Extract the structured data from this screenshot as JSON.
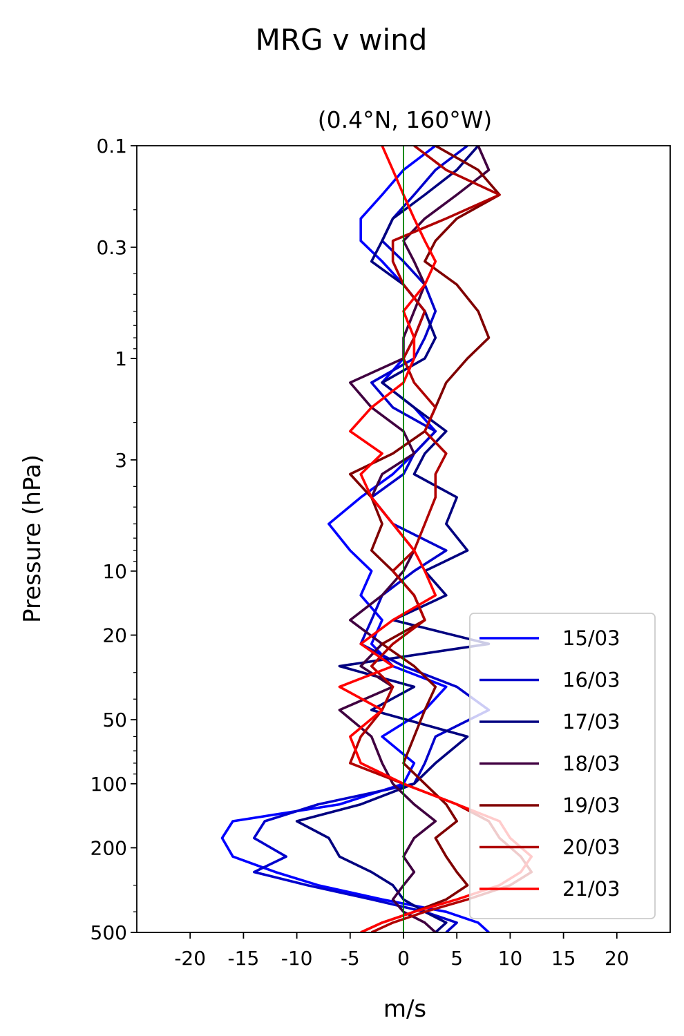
{
  "chart_data": {
    "type": "line",
    "title": "MRG v wind",
    "subtitle": "(0.4°N, 160°W)",
    "xlabel": "m/s",
    "ylabel": "Pressure (hPa)",
    "xlim": [
      -25,
      25
    ],
    "ylim": [
      500,
      0.1
    ],
    "y_scale": "log",
    "y_inverted": true,
    "grid": false,
    "legend_position": "lower-right",
    "x_ticks": [
      -20,
      -15,
      -10,
      -5,
      0,
      5,
      10,
      15,
      20
    ],
    "x_tick_labels": [
      "-20",
      "-15",
      "-10",
      "-5",
      "0",
      "5",
      "10",
      "15",
      "20"
    ],
    "y_ticks": [
      0.1,
      0.3,
      1,
      3,
      10,
      20,
      50,
      100,
      200,
      500
    ],
    "y_tick_labels": [
      "0.1",
      "0.3",
      "1",
      "3",
      "10",
      "20",
      "50",
      "100",
      "200",
      "500"
    ],
    "zero_line_color": "#008000",
    "pressure_levels": [
      0.1,
      0.13,
      0.17,
      0.22,
      0.28,
      0.35,
      0.45,
      0.6,
      0.8,
      1.0,
      1.3,
      1.7,
      2.2,
      2.8,
      3.5,
      4.5,
      6,
      8,
      10,
      13,
      17,
      22,
      28,
      35,
      45,
      60,
      80,
      100,
      125,
      150,
      180,
      220,
      260,
      300,
      350,
      400,
      450,
      500
    ],
    "series": [
      {
        "name": "15/03",
        "color": "#0000ff",
        "values": [
          3,
          0,
          -2,
          -4,
          -4,
          -2,
          0,
          2,
          1,
          0,
          -2,
          1,
          3,
          1,
          -1,
          -4,
          -7,
          -5,
          -3,
          -4,
          -2,
          -3,
          -1,
          4,
          2,
          -2,
          1,
          0,
          -6,
          -16,
          -17,
          -16,
          -12,
          -8,
          -2,
          4,
          7,
          8
        ]
      },
      {
        "name": "16/03",
        "color": "#0000cc",
        "values": [
          6,
          3,
          1,
          -1,
          -2,
          0,
          2,
          3,
          2,
          1,
          -3,
          -1,
          3,
          1,
          0,
          -3,
          -1,
          4,
          1,
          -2,
          -3,
          -4,
          0,
          5,
          8,
          3,
          2,
          1,
          -8,
          -13,
          -14,
          -11,
          -14,
          -9,
          -3,
          2,
          5,
          4
        ]
      },
      {
        "name": "17/03",
        "color": "#000080",
        "values": [
          7,
          5,
          2,
          -1,
          -2,
          -3,
          0,
          2,
          3,
          2,
          -2,
          1,
          4,
          2,
          1,
          5,
          4,
          6,
          2,
          4,
          -1,
          8,
          -6,
          1,
          -3,
          6,
          3,
          1,
          -4,
          -10,
          -7,
          -6,
          -3,
          -1,
          0,
          2,
          4,
          3
        ]
      },
      {
        "name": "18/03",
        "color": "#400040",
        "values": [
          7,
          8,
          5,
          2,
          0,
          1,
          2,
          1,
          0,
          0,
          -5,
          -3,
          0,
          1,
          -2,
          -3,
          -1,
          1,
          0,
          -2,
          -5,
          -2,
          -4,
          -1,
          -6,
          -3,
          -2,
          -1,
          1,
          3,
          1,
          0,
          1,
          0,
          -1,
          0,
          2,
          3
        ]
      },
      {
        "name": "19/03",
        "color": "#800000",
        "values": [
          3,
          7,
          9,
          5,
          3,
          2,
          5,
          7,
          8,
          6,
          4,
          3,
          2,
          -1,
          -5,
          -3,
          -2,
          -3,
          -1,
          1,
          2,
          -2,
          1,
          3,
          2,
          1,
          0,
          2,
          4,
          5,
          3,
          4,
          5,
          6,
          4,
          1,
          -2,
          -4
        ]
      },
      {
        "name": "20/03",
        "color": "#b00000",
        "values": [
          1,
          4,
          9,
          4,
          -1,
          -1,
          0,
          2,
          1,
          0,
          1,
          3,
          2,
          4,
          3,
          3,
          2,
          1,
          -1,
          1,
          2,
          -1,
          -3,
          -1,
          -2,
          -4,
          -5,
          0,
          5,
          8,
          9,
          11,
          12,
          10,
          6,
          2,
          -1,
          -3
        ]
      },
      {
        "name": "21/03",
        "color": "#ff0000",
        "values": [
          -2,
          -1,
          0,
          1,
          2,
          3,
          2,
          0,
          1,
          1,
          0,
          -3,
          -5,
          -2,
          -4,
          -3,
          -1,
          1,
          2,
          3,
          -1,
          -4,
          -1,
          -6,
          -2,
          -5,
          -4,
          0,
          5,
          9,
          10,
          12,
          11,
          9,
          5,
          1,
          -2,
          -4
        ]
      }
    ]
  }
}
